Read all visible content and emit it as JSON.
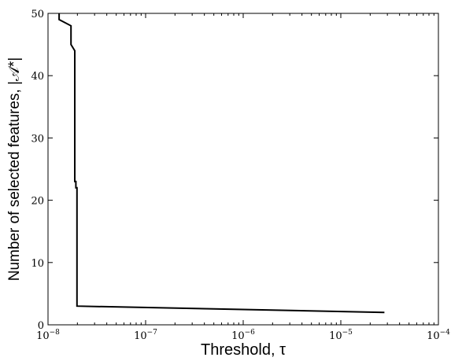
{
  "chart_data": {
    "type": "line",
    "xlabel": "Threshold, τ",
    "ylabel": "Number of selected features, |𝒜*|",
    "xscale": "log",
    "xlim": [
      1e-08,
      0.0001
    ],
    "ylim": [
      0,
      50
    ],
    "x_ticks": [
      {
        "value": 1e-08,
        "base": "10",
        "exp": "−8"
      },
      {
        "value": 1e-07,
        "base": "10",
        "exp": "−7"
      },
      {
        "value": 1e-06,
        "base": "10",
        "exp": "−6"
      },
      {
        "value": 1e-05,
        "base": "10",
        "exp": "−5"
      },
      {
        "value": 0.0001,
        "base": "10",
        "exp": "−4"
      }
    ],
    "y_ticks": [
      "0",
      "10",
      "20",
      "30",
      "40",
      "50"
    ],
    "grid": false,
    "series": [
      {
        "x": [
          1.3e-08,
          1.3e-08,
          1.72e-08,
          1.72e-08,
          1.88e-08,
          1.88e-08,
          1.93e-08,
          1.93e-08,
          1.98e-08,
          1.98e-08,
          2.8e-05
        ],
        "y": [
          50,
          49,
          48,
          45,
          44,
          23,
          23,
          22,
          22,
          3,
          2
        ],
        "color": "#000000"
      }
    ]
  }
}
